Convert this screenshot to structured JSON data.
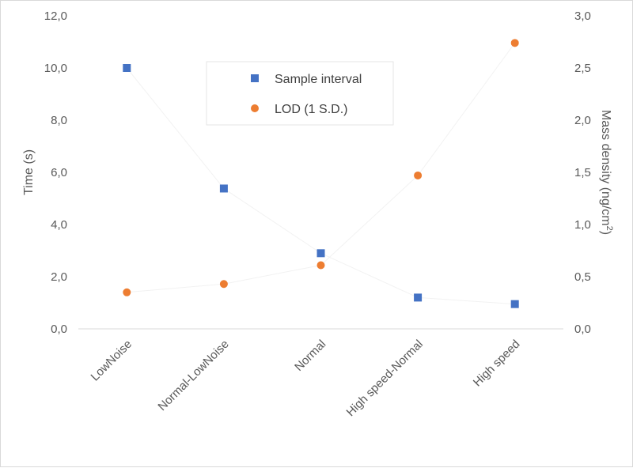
{
  "chart_data": {
    "type": "scatter",
    "categories": [
      "LowNoise",
      "Normal-LowNoise",
      "Normal",
      "High speed-Normal",
      "High speed"
    ],
    "series": [
      {
        "name": "Sample interval",
        "axis": "left",
        "marker": "square",
        "color": "#4472c4",
        "values": [
          10.0,
          5.38,
          2.9,
          1.2,
          0.95
        ]
      },
      {
        "name": "LOD (1 S.D.)",
        "axis": "right",
        "marker": "circle",
        "color": "#ed7d31",
        "values": [
          0.35,
          0.43,
          0.61,
          1.47,
          2.74
        ]
      }
    ],
    "y_left": {
      "label": "Time (s)",
      "range": [
        0,
        12
      ],
      "ticks": [
        0,
        2,
        4,
        6,
        8,
        10,
        12
      ],
      "tick_labels": [
        "0,0",
        "2,0",
        "4,0",
        "6,0",
        "8,0",
        "10,0",
        "12,0"
      ]
    },
    "y_right": {
      "label_main": "Mass density (ng/cm",
      "label_sup": "2",
      "label_end": ")",
      "range": [
        0,
        3
      ],
      "ticks": [
        0,
        0.5,
        1,
        1.5,
        2,
        2.5,
        3
      ],
      "tick_labels": [
        "0,0",
        "0,5",
        "1,0",
        "1,5",
        "2,0",
        "2,5",
        "3,0"
      ]
    },
    "legend_position": "top-center",
    "grid": false
  }
}
